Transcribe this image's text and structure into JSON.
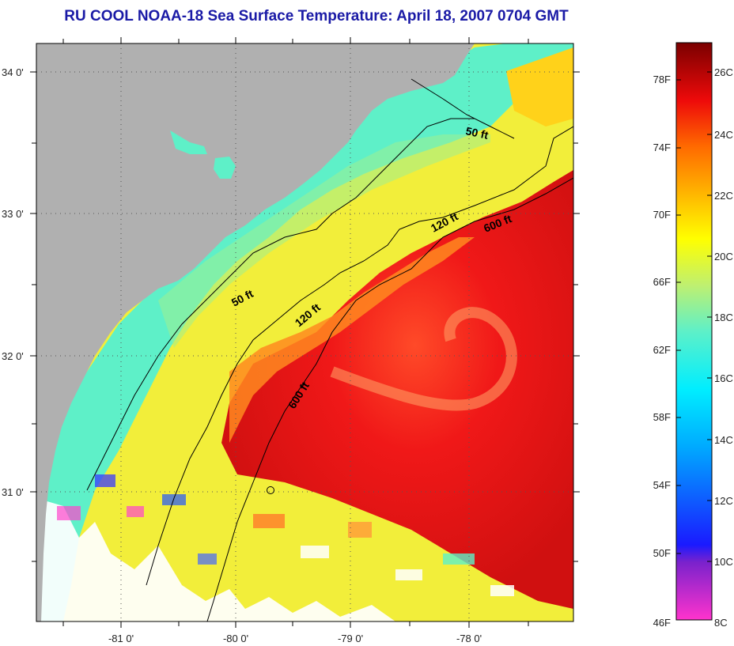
{
  "title": "RU COOL  NOAA-18  Sea Surface Temperature:  April 18, 2007 0704 GMT",
  "map": {
    "lat_labels": [
      "34 0'",
      "33 0'",
      "32 0'",
      "31 0'"
    ],
    "lon_labels": [
      "-81 0'",
      "-80 0'",
      "-79 0'",
      "-78 0'"
    ],
    "contour_labels": [
      {
        "text": "50 ft"
      },
      {
        "text": "120 ft"
      },
      {
        "text": "600 ft"
      },
      {
        "text": "50 ft"
      },
      {
        "text": "120 ft"
      },
      {
        "text": "600 ft"
      }
    ]
  },
  "colorbar": {
    "fahrenheit_labels": [
      "78F",
      "74F",
      "70F",
      "66F",
      "62F",
      "58F",
      "54F",
      "50F",
      "46F"
    ],
    "celsius_labels": [
      "26C",
      "24C",
      "22C",
      "20C",
      "18C",
      "16C",
      "14C",
      "12C",
      "10C",
      "8C"
    ]
  },
  "colors": {
    "title": "#1a1aa6",
    "land": "#b0b0b0",
    "gulf_stream": "#e01818",
    "shelf_water": "#f2ee3a",
    "nearshore": "#5ef0c8",
    "cloud": "#ffffff"
  }
}
